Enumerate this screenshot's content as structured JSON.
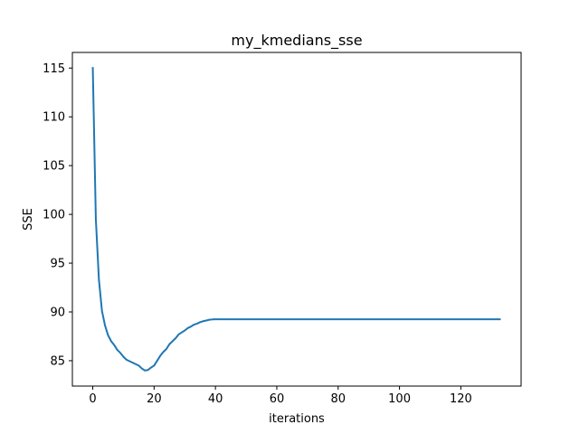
{
  "chart_data": {
    "type": "line",
    "title": "my_kmedians_sse",
    "xlabel": "iterations",
    "ylabel": "SSE",
    "xlim": [
      -6.65,
      139.65
    ],
    "ylim": [
      82.4,
      116.6
    ],
    "xticks": [
      0,
      20,
      40,
      60,
      80,
      100,
      120
    ],
    "yticks": [
      85,
      90,
      95,
      100,
      105,
      110,
      115
    ],
    "grid": false,
    "color": "#1f77b4",
    "series": [
      {
        "x": [
          0,
          1,
          2,
          3,
          4,
          5,
          6,
          7,
          8,
          9,
          10,
          11,
          12,
          13,
          14,
          15,
          16,
          17,
          18,
          19,
          20,
          21,
          22,
          23,
          24,
          25,
          26,
          27,
          28,
          29,
          30,
          31,
          32,
          33,
          34,
          35,
          36,
          37,
          38,
          39,
          40,
          45,
          50,
          60,
          70,
          80,
          90,
          100,
          110,
          120,
          133
        ],
        "y": [
          115.1,
          99.5,
          93.3,
          90.1,
          88.6,
          87.6,
          87.0,
          86.6,
          86.1,
          85.8,
          85.4,
          85.1,
          84.95,
          84.8,
          84.65,
          84.5,
          84.2,
          84.0,
          84.05,
          84.3,
          84.5,
          85.0,
          85.5,
          85.9,
          86.2,
          86.7,
          87.0,
          87.3,
          87.7,
          87.9,
          88.1,
          88.35,
          88.5,
          88.7,
          88.8,
          88.95,
          89.05,
          89.12,
          89.2,
          89.23,
          89.25,
          89.25,
          89.25,
          89.25,
          89.25,
          89.25,
          89.25,
          89.25,
          89.25,
          89.25,
          89.25
        ]
      }
    ]
  }
}
